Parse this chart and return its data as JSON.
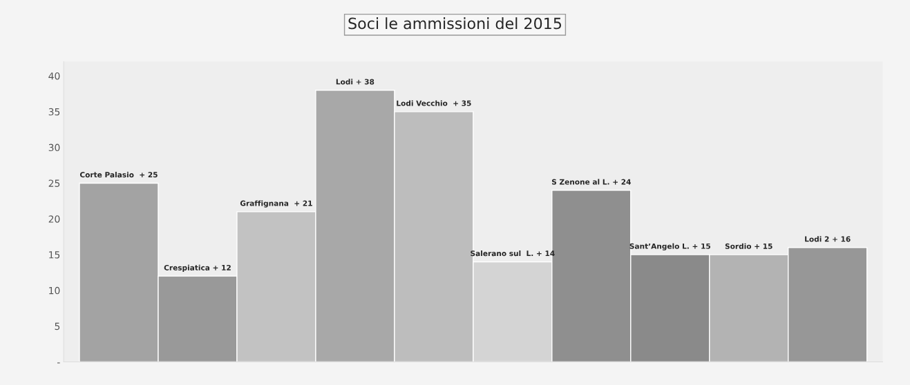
{
  "chart_data": {
    "type": "bar",
    "title": "Soci le ammissioni del 2015",
    "categories": [
      null,
      null,
      null,
      null,
      null,
      null,
      null,
      null,
      null,
      null
    ],
    "values": [
      25,
      12,
      21,
      38,
      35,
      14,
      24,
      15,
      15,
      16
    ],
    "colors": [
      "#a3a3a3",
      "#999999",
      "#c2c2c2",
      "#a8a8a8",
      "#bdbdbd",
      "#d4d4d4",
      "#8f8f8f",
      "#8a8a8a",
      "#b3b3b3",
      "#979797"
    ],
    "value_labels": [
      "Corte Palasio  + 25",
      "Crespiatica + 12",
      "Graffignana  + 21",
      "Lodi + 38",
      "Lodi Vecchio  + 35",
      "Salerano sul  L. + 14",
      "S Zenone al L. + 24",
      "Sant’Angelo L. + 15",
      "Sordio + 15",
      "Lodi 2 + 16"
    ],
    "ylim": [
      0,
      42
    ],
    "yticks": [
      {
        "value": 0,
        "label": "-"
      },
      5,
      10,
      15,
      20,
      25,
      30,
      35,
      40
    ],
    "tick_labels": "y",
    "grid": false,
    "legend": false
  }
}
